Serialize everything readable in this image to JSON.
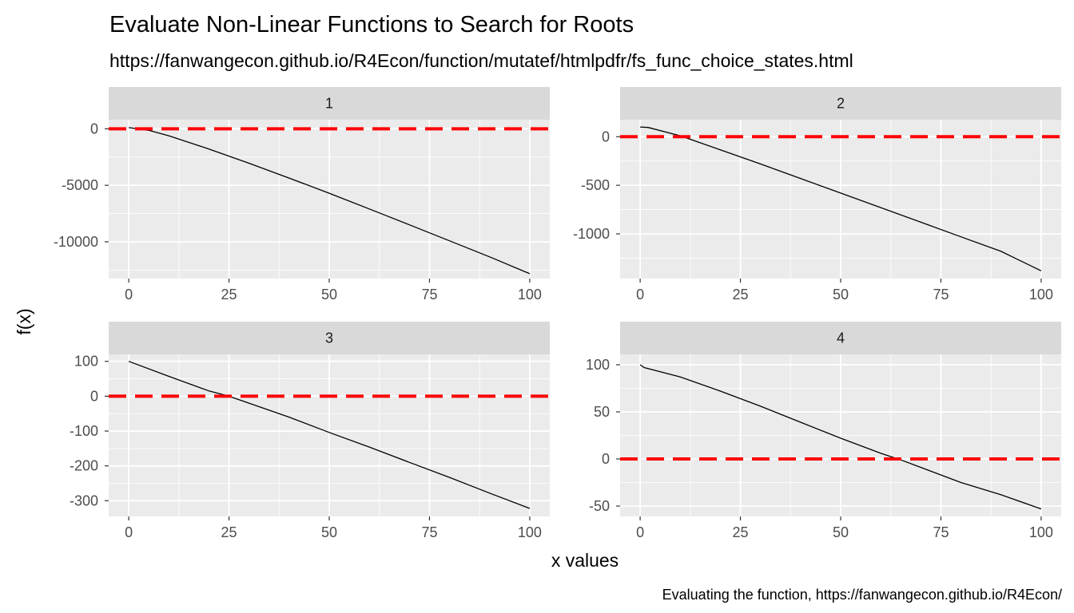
{
  "chart_data": {
    "type": "line",
    "title": "Evaluate Non-Linear Functions to Search for Roots",
    "subtitle": "https://fanwangecon.github.io/R4Econ/function/mutatef/htmlpdfr/fs_func_choice_states.html",
    "caption": "Evaluating the function, https://fanwangecon.github.io/R4Econ/",
    "xlabel": "x values",
    "ylabel": "f(x)",
    "reference_line": {
      "y": 0,
      "color": "#ff0000",
      "style": "dashed"
    },
    "line_color": "#000000",
    "grid": true,
    "facets": [
      {
        "label": "1",
        "xlim": [
          -5,
          105
        ],
        "ylim": [
          -13250,
          800
        ],
        "xticks": [
          0,
          25,
          50,
          75,
          100
        ],
        "yticks": [
          0,
          -5000,
          -10000
        ],
        "minor_y": [
          -2500,
          -7500,
          -12500
        ],
        "x": [
          0,
          5,
          10,
          20,
          30,
          40,
          50,
          60,
          70,
          80,
          90,
          100
        ],
        "y": [
          100,
          -140,
          -620,
          -1790,
          -3050,
          -4360,
          -5700,
          -7090,
          -8500,
          -9910,
          -11330,
          -12820
        ]
      },
      {
        "label": "2",
        "xlim": [
          -5,
          105
        ],
        "ylim": [
          -1460,
          175
        ],
        "xticks": [
          0,
          25,
          50,
          75,
          100
        ],
        "yticks": [
          0,
          -500,
          -1000
        ],
        "minor_y": [
          -250,
          -750,
          -1250
        ],
        "x": [
          0,
          2,
          10,
          20,
          30,
          40,
          50,
          60,
          70,
          80,
          90,
          100
        ],
        "y": [
          100,
          95,
          10,
          -135,
          -280,
          -430,
          -580,
          -730,
          -880,
          -1030,
          -1180,
          -1380
        ]
      },
      {
        "label": "3",
        "xlim": [
          -5,
          105
        ],
        "ylim": [
          -345,
          120
        ],
        "xticks": [
          0,
          25,
          50,
          75,
          100
        ],
        "yticks": [
          100,
          0,
          -100,
          -200,
          -300
        ],
        "minor_y": [
          50,
          -50,
          -150,
          -250
        ],
        "x": [
          0,
          10,
          20,
          25,
          30,
          40,
          50,
          60,
          70,
          80,
          90,
          100
        ],
        "y": [
          100,
          57,
          15,
          0,
          -20,
          -60,
          -104,
          -146,
          -190,
          -233,
          -278,
          -322
        ]
      },
      {
        "label": "4",
        "xlim": [
          -5,
          105
        ],
        "ylim": [
          -61,
          111
        ],
        "xticks": [
          0,
          25,
          50,
          75,
          100
        ],
        "yticks": [
          100,
          50,
          0,
          -50
        ],
        "minor_y": [
          75,
          25,
          -25
        ],
        "x": [
          0,
          1,
          10,
          20,
          30,
          40,
          50,
          60,
          65,
          70,
          80,
          90,
          100
        ],
        "y": [
          100,
          97,
          87,
          72,
          56,
          39,
          22,
          6,
          -1,
          -9,
          -25,
          -38,
          -53
        ]
      }
    ]
  }
}
